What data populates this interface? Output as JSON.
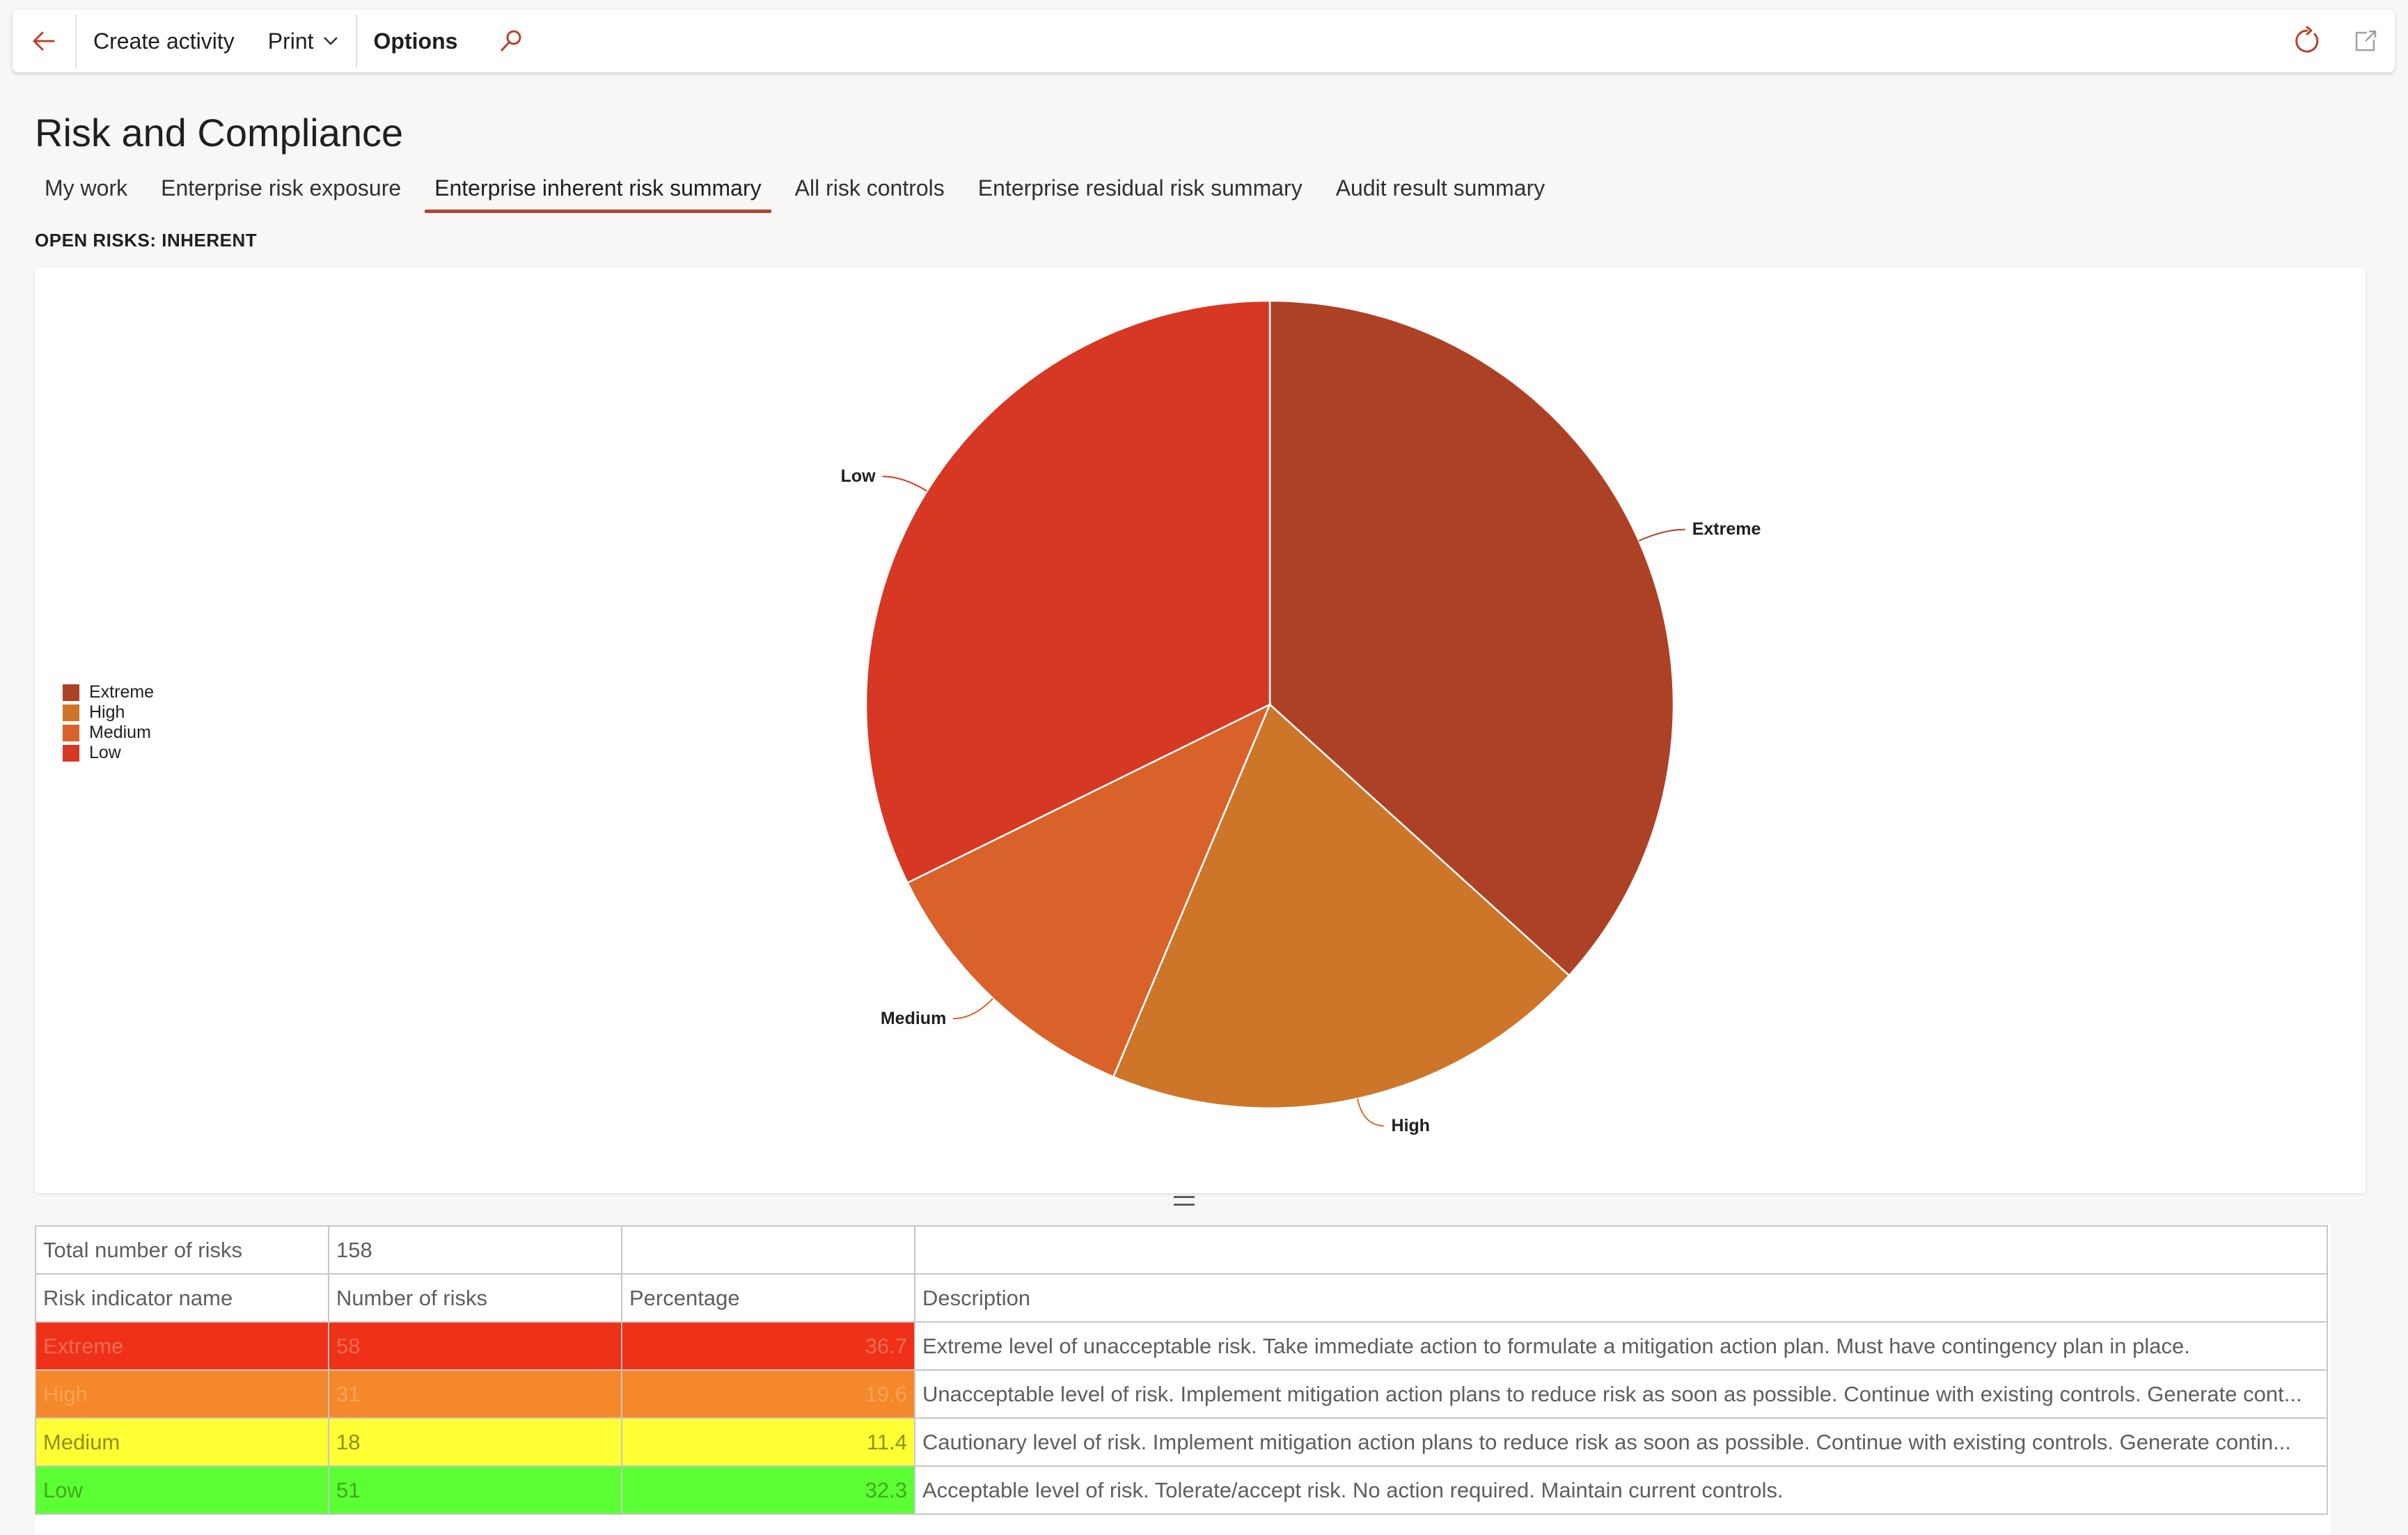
{
  "toolbar": {
    "create_activity": "Create activity",
    "print": "Print",
    "options": "Options"
  },
  "page": {
    "title": "Risk and Compliance",
    "section_label": "OPEN RISKS: INHERENT"
  },
  "tabs": [
    {
      "label": "My work",
      "active": false
    },
    {
      "label": "Enterprise risk exposure",
      "active": false
    },
    {
      "label": "Enterprise inherent risk summary",
      "active": true
    },
    {
      "label": "All risk controls",
      "active": false
    },
    {
      "label": "Enterprise residual risk summary",
      "active": false
    },
    {
      "label": "Audit result summary",
      "active": false
    }
  ],
  "colors": {
    "accent": "#b5432c",
    "extreme": "#ad4126",
    "high": "#cd7629",
    "medium": "#d8622a",
    "low": "#d63824"
  },
  "chart_data": {
    "type": "pie",
    "categories": [
      "Extreme",
      "High",
      "Medium",
      "Low"
    ],
    "values": [
      58,
      31,
      18,
      51
    ],
    "colors": [
      "#ad4126",
      "#cd7629",
      "#d8622a",
      "#d63824"
    ],
    "legend_position": "left"
  },
  "grid": {
    "total_label": "Total number of risks",
    "total_value": "158",
    "headers": [
      "Risk indicator name",
      "Number of risks",
      "Percentage",
      "Description"
    ],
    "rows": [
      {
        "name": "Extreme",
        "count": "58",
        "percent": "36.7",
        "desc": "Extreme level of unacceptable risk. Take immediate action to formulate a mitigation action plan. Must have contingency plan in place."
      },
      {
        "name": "High",
        "count": "31",
        "percent": "19.6",
        "desc": "Unacceptable level of risk. Implement mitigation action plans to reduce risk as soon as possible. Continue with existing controls. Generate cont..."
      },
      {
        "name": "Medium",
        "count": "18",
        "percent": "11.4",
        "desc": "Cautionary level of risk. Implement mitigation action plans to reduce risk as soon as possible. Continue with existing controls. Generate contin..."
      },
      {
        "name": "Low",
        "count": "51",
        "percent": "32.3",
        "desc": "Acceptable level of risk. Tolerate/accept risk. No action required. Maintain current controls."
      }
    ]
  }
}
